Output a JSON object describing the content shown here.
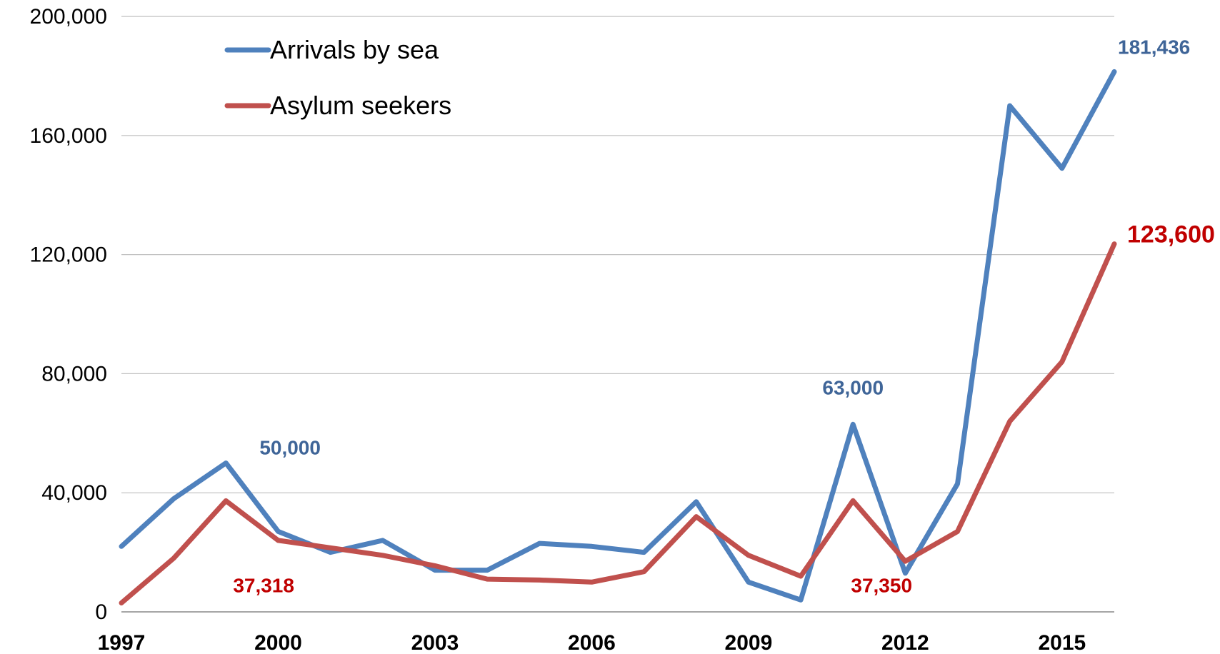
{
  "chart_data": {
    "type": "line",
    "title": "",
    "xlabel": "",
    "ylabel": "",
    "x": [
      1997,
      1998,
      1999,
      2000,
      2001,
      2002,
      2003,
      2004,
      2005,
      2006,
      2007,
      2008,
      2009,
      2010,
      2011,
      2012,
      2013,
      2014,
      2015,
      2016
    ],
    "xlim": [
      1997,
      2016
    ],
    "xticks": [
      1997,
      2000,
      2003,
      2006,
      2009,
      2012,
      2015
    ],
    "xtick_labels": [
      "1997",
      "2000",
      "2003",
      "2006",
      "2009",
      "2012",
      "2015"
    ],
    "ylim": [
      0,
      200000
    ],
    "yticks": [
      0,
      40000,
      80000,
      120000,
      160000,
      200000
    ],
    "ytick_labels": [
      "0",
      "40,000",
      "80,000",
      "120,000",
      "160,000",
      "200,000"
    ],
    "grid": "horizontal",
    "legend_position": "top-left",
    "series": [
      {
        "name": "Arrivals by sea",
        "color": "#4F81BD",
        "values": [
          22000,
          38000,
          50000,
          27000,
          20000,
          24000,
          14000,
          14000,
          23000,
          22000,
          20000,
          37000,
          10000,
          4000,
          63000,
          13000,
          43000,
          170000,
          149000,
          181436
        ]
      },
      {
        "name": "Asylum seekers",
        "color": "#C0504D",
        "values": [
          3000,
          18000,
          37318,
          24000,
          21500,
          19000,
          15500,
          11000,
          10700,
          10000,
          13500,
          32000,
          19000,
          12000,
          37350,
          17000,
          27000,
          64000,
          84000,
          123600
        ]
      }
    ],
    "data_labels": [
      {
        "series": 0,
        "x": 1999,
        "text": "50,000",
        "color": "#3F6598"
      },
      {
        "series": 0,
        "x": 2011,
        "text": "63,000",
        "color": "#3F6598"
      },
      {
        "series": 0,
        "x": 2016,
        "text": "181,436",
        "color": "#3F6598"
      },
      {
        "series": 1,
        "x": 1999,
        "text": "37,318",
        "color": "#C00000"
      },
      {
        "series": 1,
        "x": 2011,
        "text": "37,350",
        "color": "#C00000"
      },
      {
        "series": 1,
        "x": 2016,
        "text": "123,600",
        "color": "#C00000"
      }
    ]
  }
}
